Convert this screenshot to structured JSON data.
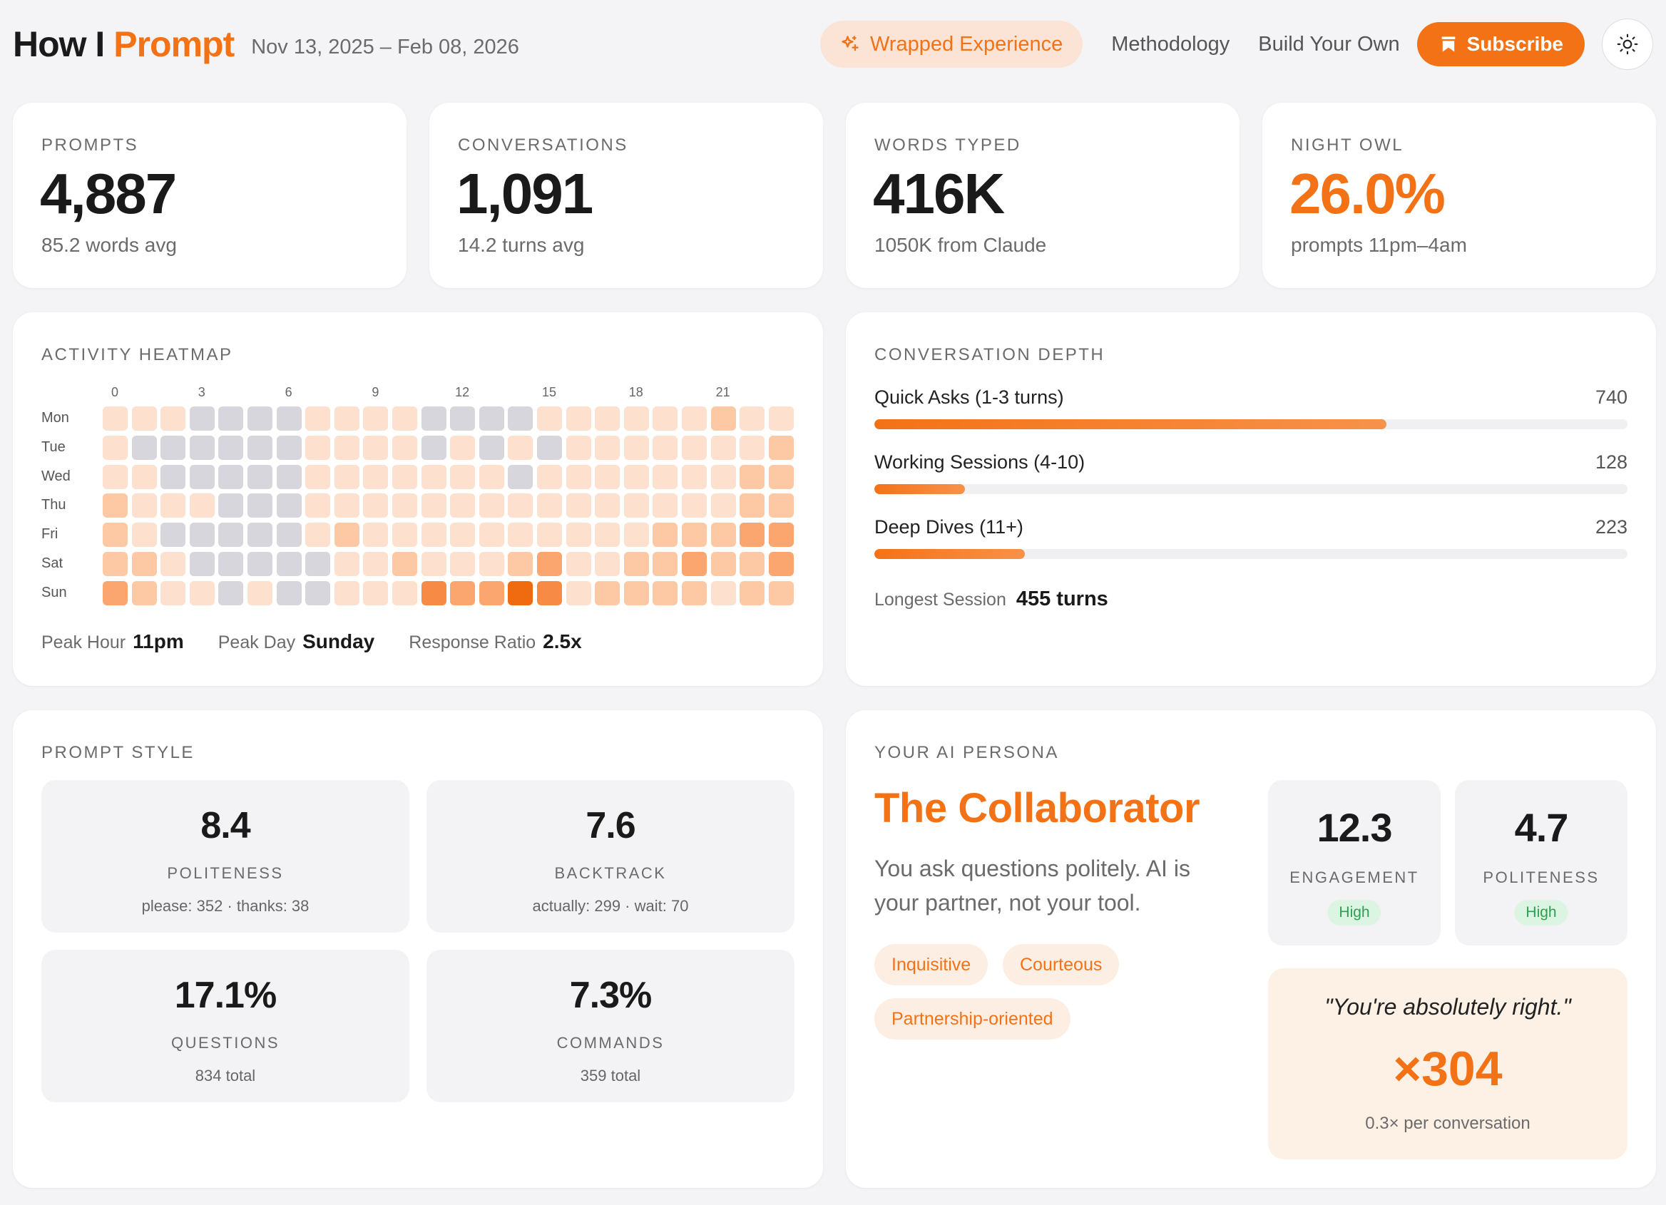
{
  "header": {
    "brand_prefix": "How I",
    "brand_accent": "Prompt",
    "date_range": "Nov 13, 2025 – Feb 08, 2026",
    "wrapped_label": "Wrapped Experience",
    "nav_links": [
      "Methodology",
      "Build Your Own"
    ],
    "subscribe_label": "Subscribe",
    "theme_icon": "sun-icon"
  },
  "colors": {
    "accent": "#f47216",
    "accent_soft": "#fbe4d6",
    "positive": "#2f9e52"
  },
  "stats": [
    {
      "label": "PROMPTS",
      "value": "4,887",
      "sub": "85.2 words avg",
      "highlight": false
    },
    {
      "label": "CONVERSATIONS",
      "value": "1,091",
      "sub": "14.2 turns avg",
      "highlight": false
    },
    {
      "label": "WORDS TYPED",
      "value": "416K",
      "sub": "1050K from Claude",
      "highlight": false
    },
    {
      "label": "NIGHT OWL",
      "value": "26.0%",
      "sub": "prompts 11pm–4am",
      "highlight": true
    }
  ],
  "heatmap": {
    "title": "ACTIVITY HEATMAP",
    "hour_labels": [
      "0",
      "3",
      "6",
      "9",
      "12",
      "15",
      "18",
      "21"
    ],
    "days": [
      "Mon",
      "Tue",
      "Wed",
      "Thu",
      "Fri",
      "Sat",
      "Sun"
    ],
    "levels": [
      [
        1,
        1,
        1,
        0,
        0,
        0,
        0,
        1,
        1,
        1,
        1,
        0,
        0,
        0,
        0,
        1,
        1,
        1,
        1,
        1,
        1,
        2,
        1,
        1
      ],
      [
        1,
        0,
        0,
        0,
        0,
        0,
        0,
        1,
        1,
        1,
        1,
        0,
        1,
        0,
        1,
        0,
        1,
        1,
        1,
        1,
        1,
        1,
        1,
        2
      ],
      [
        1,
        1,
        0,
        0,
        0,
        0,
        0,
        1,
        1,
        1,
        1,
        1,
        1,
        1,
        0,
        1,
        1,
        1,
        1,
        1,
        1,
        1,
        2,
        2
      ],
      [
        2,
        1,
        1,
        1,
        0,
        0,
        0,
        1,
        1,
        1,
        1,
        1,
        1,
        1,
        1,
        1,
        1,
        1,
        1,
        1,
        1,
        1,
        2,
        2
      ],
      [
        2,
        1,
        0,
        0,
        0,
        0,
        0,
        1,
        2,
        1,
        1,
        1,
        1,
        1,
        1,
        1,
        1,
        1,
        1,
        2,
        2,
        2,
        3,
        3
      ],
      [
        2,
        2,
        1,
        0,
        0,
        0,
        0,
        0,
        1,
        1,
        2,
        1,
        1,
        1,
        2,
        3,
        1,
        1,
        2,
        2,
        3,
        2,
        2,
        3
      ],
      [
        3,
        2,
        1,
        1,
        0,
        1,
        0,
        0,
        1,
        1,
        1,
        4,
        3,
        3,
        5,
        4,
        1,
        2,
        2,
        2,
        2,
        1,
        2,
        2
      ]
    ],
    "level_colors": [
      "#d6d6dc",
      "#fde0cd",
      "#fcc9a4",
      "#faa66e",
      "#f78b46",
      "#f06a0f"
    ],
    "peak_hour_label": "Peak Hour",
    "peak_hour": "11pm",
    "peak_day_label": "Peak Day",
    "peak_day": "Sunday",
    "response_ratio_label": "Response Ratio",
    "response_ratio": "2.5x"
  },
  "depth": {
    "title": "CONVERSATION DEPTH",
    "rows": [
      {
        "name": "Quick Asks (1-3 turns)",
        "count": "740",
        "fraction": 0.68
      },
      {
        "name": "Working Sessions (4-10)",
        "count": "128",
        "fraction": 0.12
      },
      {
        "name": "Deep Dives (11+)",
        "count": "223",
        "fraction": 0.2
      }
    ],
    "longest_label": "Longest Session",
    "longest_value": "455 turns"
  },
  "style": {
    "title": "PROMPT STYLE",
    "tiles": [
      {
        "value": "8.4",
        "label": "POLITENESS",
        "detail": "please: 352 · thanks: 38"
      },
      {
        "value": "7.6",
        "label": "BACKTRACK",
        "detail": "actually: 299 · wait: 70"
      },
      {
        "value": "17.1%",
        "label": "QUESTIONS",
        "detail": "834 total"
      },
      {
        "value": "7.3%",
        "label": "COMMANDS",
        "detail": "359 total"
      }
    ]
  },
  "persona": {
    "title": "YOUR AI PERSONA",
    "name": "The Collaborator",
    "description": "You ask questions politely. AI is your partner, not your tool.",
    "tags": [
      "Inquisitive",
      "Courteous",
      "Partnership-oriented"
    ],
    "metrics": [
      {
        "value": "12.3",
        "label": "ENGAGEMENT",
        "badge": "High"
      },
      {
        "value": "4.7",
        "label": "POLITENESS",
        "badge": "High"
      }
    ],
    "quote": "\"You're absolutely right.\"",
    "quote_count": "×304",
    "quote_sub": "0.3× per conversation"
  }
}
